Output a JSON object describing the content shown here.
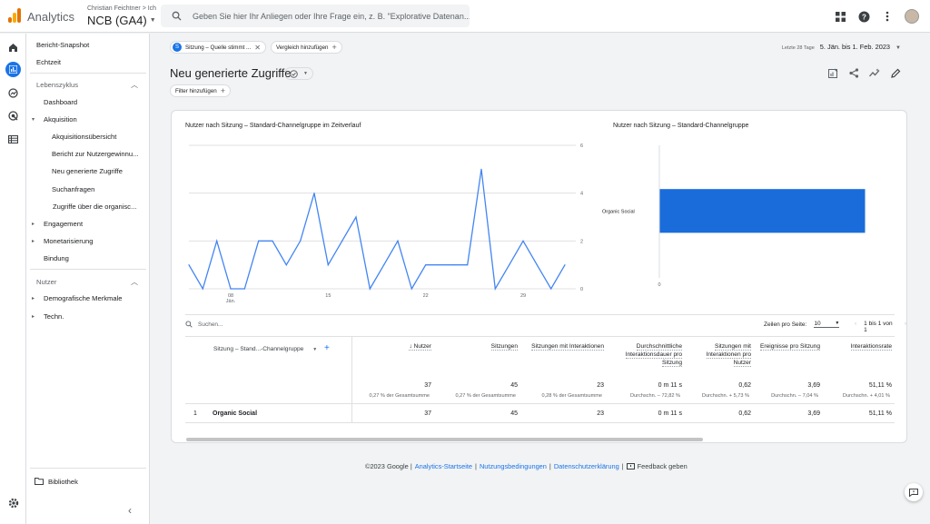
{
  "app": {
    "name": "Analytics",
    "account_path": "Christian Feichtner > Ich",
    "property": "NCB (GA4)"
  },
  "search": {
    "placeholder": "Geben Sie hier Ihr Anliegen oder Ihre Frage ein, z. B. \"Explorative Datenan..."
  },
  "sidebar": {
    "top_items": [
      "Bericht-Snapshot",
      "Echtzeit"
    ],
    "lifecycle": {
      "label": "Lebenszyklus",
      "dashboard": "Dashboard",
      "acquisition": "Akquisition",
      "acquisition_items": [
        "Akquisitionsübersicht",
        "Bericht zur Nutzergewinnu...",
        "Neu generierte Zugriffe",
        "Suchanfragen",
        "Zugriffe über die organisc..."
      ],
      "engagement": "Engagement",
      "monetization": "Monetarisierung",
      "retention": "Bindung"
    },
    "users": {
      "label": "Nutzer",
      "demographics": "Demografische Merkmale",
      "tech": "Techn."
    },
    "library": "Bibliothek"
  },
  "filters": {
    "comparison_chip": "Sitzung – Quelle stimmt ...",
    "comparison_badge": "S",
    "add_comparison": "Vergleich hinzufügen",
    "add_filter": "Filter hinzufügen"
  },
  "date_range": {
    "label": "Letzte 28 Tage",
    "value": "5. Jän. bis 1. Feb. 2023"
  },
  "page": {
    "title": "Neu generierte Zugriffe"
  },
  "colors": {
    "accent": "#1a73e8",
    "bar": "#1a6cdb",
    "line": "#4285f4"
  },
  "chart_data": [
    {
      "type": "line",
      "title": "Nutzer nach Sitzung – Standard-Channelgruppe im Zeitverlauf",
      "x_ticks": [
        {
          "label": "08",
          "sub": "Jän."
        },
        {
          "label": "15"
        },
        {
          "label": "22"
        },
        {
          "label": "29"
        }
      ],
      "y_ticks": [
        "6",
        "4",
        "2",
        "0"
      ],
      "ylim": [
        0,
        6
      ],
      "series": [
        {
          "values": [
            1,
            0,
            2,
            0,
            0,
            2,
            2,
            1,
            2,
            4,
            1,
            2,
            3,
            0,
            1,
            2,
            0,
            1,
            1,
            1,
            1,
            5,
            0,
            1,
            2,
            1,
            0,
            1
          ]
        }
      ]
    },
    {
      "type": "bar",
      "title": "Nutzer nach Sitzung – Standard-Channelgruppe",
      "categories": [
        "Organic Social"
      ],
      "values": [
        37
      ],
      "x_ticks": [
        "0"
      ]
    }
  ],
  "table": {
    "search_placeholder": "Suchen...",
    "rows_per_page_label": "Zeilen pro Seite:",
    "rows_per_page_value": "10",
    "pagination": "1 bis 1 von 1",
    "dimension_header": "Sitzung – Stand...-Channelgruppe",
    "columns": [
      {
        "label": "↓ Nutzer",
        "total": "37",
        "sub": "0,27 % der Gesamtsumme"
      },
      {
        "label": "Sitzungen",
        "total": "45",
        "sub": "0,27 % der Gesamtsumme"
      },
      {
        "label": "Sitzungen mit Interaktionen",
        "total": "23",
        "sub": "0,28 % der Gesamtsumme"
      },
      {
        "label": "Durchschnittliche Interaktionsdauer pro Sitzung",
        "total": "0 m 11 s",
        "sub": "Durchschn. – 72,82 %"
      },
      {
        "label": "Sitzungen mit Interaktionen pro Nutzer",
        "total": "0,62",
        "sub": "Durchschn. + 5,73 %"
      },
      {
        "label": "Ereignisse pro Sitzung",
        "total": "3,69",
        "sub": "Durchschn. – 7,04 %"
      },
      {
        "label": "Interaktionsrate",
        "total": "51,11 %",
        "sub": "Durchschn. + 4,01 %"
      }
    ],
    "rows": [
      {
        "index": "1",
        "dimension": "Organic Social",
        "values": [
          "37",
          "45",
          "23",
          "0 m 11 s",
          "0,62",
          "3,69",
          "51,11 %"
        ]
      }
    ]
  },
  "footer": {
    "copyright": "©2023 Google |",
    "links": [
      "Analytics-Startseite",
      "Nutzungsbedingungen",
      "Datenschutzerklärung"
    ],
    "feedback": "Feedback geben"
  }
}
